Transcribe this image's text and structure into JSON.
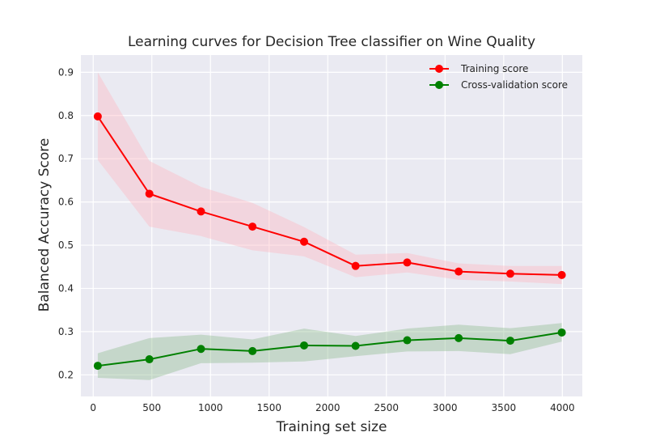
{
  "chart_data": {
    "type": "line",
    "title": "Learning curves for Decision Tree classifier on Wine Quality",
    "xlabel": "Training set size",
    "ylabel": "Balanced Accuracy Score",
    "xlim": [
      -105,
      4170
    ],
    "ylim": [
      0.15,
      0.94
    ],
    "xticks": [
      0,
      500,
      1000,
      1500,
      2000,
      2500,
      3000,
      3500,
      4000
    ],
    "yticks": [
      0.2,
      0.3,
      0.4,
      0.5,
      0.6,
      0.7,
      0.8,
      0.9
    ],
    "xtick_labels": [
      "0",
      "500",
      "1000",
      "1500",
      "2000",
      "2500",
      "3000",
      "3500",
      "4000"
    ],
    "ytick_labels": [
      "0.2",
      "0.3",
      "0.4",
      "0.5",
      "0.6",
      "0.7",
      "0.8",
      "0.9"
    ],
    "grid": true,
    "legend_position": "top-right",
    "x": [
      39,
      479,
      919,
      1358,
      1798,
      2237,
      2677,
      3116,
      3556,
      3995
    ],
    "series": [
      {
        "name": "Training score",
        "color": "#ff0000",
        "band_color": "#ffb6c1",
        "values": [
          0.798,
          0.619,
          0.578,
          0.543,
          0.508,
          0.452,
          0.46,
          0.439,
          0.434,
          0.431
        ],
        "upper": [
          0.9,
          0.695,
          0.635,
          0.598,
          0.542,
          0.478,
          0.482,
          0.458,
          0.452,
          0.452
        ],
        "lower": [
          0.697,
          0.543,
          0.521,
          0.488,
          0.474,
          0.426,
          0.437,
          0.42,
          0.416,
          0.41
        ]
      },
      {
        "name": "Cross-validation score",
        "color": "#008000",
        "band_color": "#8fbc8f",
        "values": [
          0.221,
          0.236,
          0.26,
          0.255,
          0.268,
          0.267,
          0.28,
          0.285,
          0.279,
          0.298
        ],
        "upper": [
          0.25,
          0.285,
          0.293,
          0.282,
          0.307,
          0.29,
          0.307,
          0.316,
          0.308,
          0.32
        ],
        "lower": [
          0.193,
          0.188,
          0.227,
          0.228,
          0.231,
          0.243,
          0.254,
          0.255,
          0.248,
          0.277
        ]
      }
    ]
  }
}
